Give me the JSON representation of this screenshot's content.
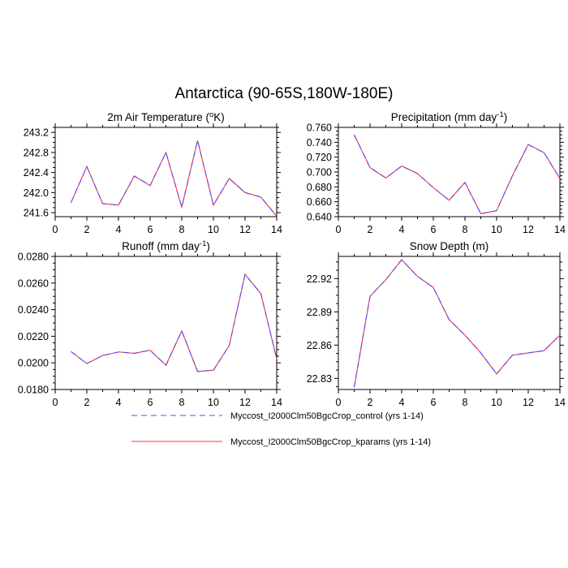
{
  "figure": {
    "title": "Antarctica (90-65S,180W-180E)"
  },
  "legend": [
    {
      "name": "Myccost_I2000Clm50BgcCrop_control (yrs 1-14)",
      "color": "#4d4dff",
      "dash": "dashed"
    },
    {
      "name": "Myccost_I2000Clm50BgcCrop_kparams (yrs 1-14)",
      "color": "#ff3333",
      "dash": "solid"
    }
  ],
  "chart_data": [
    {
      "type": "line",
      "title": "2m Air Temperature (°K)",
      "title_parts": {
        "pre": "2m Air Temperature (",
        "sup": "o",
        "post": "K)"
      },
      "x": [
        1,
        2,
        3,
        4,
        5,
        6,
        7,
        8,
        9,
        10,
        11,
        12,
        13,
        14
      ],
      "xlim": [
        0,
        14
      ],
      "xticks": [
        0,
        2,
        4,
        6,
        8,
        10,
        12,
        14
      ],
      "ylim": [
        241.52,
        243.3
      ],
      "yticks": [
        241.6,
        242.0,
        242.4,
        242.8,
        243.2
      ],
      "ytick_labels": [
        "241.6",
        "242.0",
        "242.4",
        "242.8",
        "243.2"
      ],
      "series": [
        {
          "values": [
            241.8,
            242.52,
            241.78,
            241.75,
            242.33,
            242.14,
            242.8,
            241.71,
            243.04,
            241.75,
            242.28,
            242.0,
            241.91,
            241.53
          ]
        },
        {
          "values": [
            241.8,
            242.52,
            241.78,
            241.75,
            242.33,
            242.14,
            242.8,
            241.71,
            243.04,
            241.75,
            242.28,
            242.0,
            241.91,
            241.53
          ]
        }
      ]
    },
    {
      "type": "line",
      "title": "Precipitation (mm day-1)",
      "title_parts": {
        "pre": "Precipitation (mm day",
        "sup": "-1",
        "post": ")"
      },
      "x": [
        1,
        2,
        3,
        4,
        5,
        6,
        7,
        8,
        9,
        10,
        11,
        12,
        13,
        14
      ],
      "xlim": [
        0,
        14
      ],
      "xticks": [
        0,
        2,
        4,
        6,
        8,
        10,
        12,
        14
      ],
      "ylim": [
        0.64,
        0.76
      ],
      "yticks": [
        0.64,
        0.66,
        0.68,
        0.7,
        0.72,
        0.74,
        0.76
      ],
      "ytick_labels": [
        "0.640",
        "0.660",
        "0.680",
        "0.700",
        "0.720",
        "0.740",
        "0.760"
      ],
      "series": [
        {
          "values": [
            0.75,
            0.706,
            0.692,
            0.708,
            0.698,
            0.679,
            0.662,
            0.686,
            0.644,
            0.648,
            0.695,
            0.737,
            0.726,
            0.691
          ]
        },
        {
          "values": [
            0.75,
            0.706,
            0.692,
            0.708,
            0.698,
            0.679,
            0.662,
            0.686,
            0.644,
            0.648,
            0.695,
            0.737,
            0.726,
            0.691
          ]
        }
      ]
    },
    {
      "type": "line",
      "title": "Runoff (mm day-1)",
      "title_parts": {
        "pre": "Runoff (mm day",
        "sup": "-1",
        "post": ")"
      },
      "x": [
        1,
        2,
        3,
        4,
        5,
        6,
        7,
        8,
        9,
        10,
        11,
        12,
        13,
        14
      ],
      "xlim": [
        0,
        14
      ],
      "xticks": [
        0,
        2,
        4,
        6,
        8,
        10,
        12,
        14
      ],
      "ylim": [
        0.018,
        0.028
      ],
      "yticks": [
        0.018,
        0.02,
        0.022,
        0.024,
        0.026,
        0.028
      ],
      "ytick_labels": [
        "0.0180",
        "0.0200",
        "0.0220",
        "0.0240",
        "0.0260",
        "0.0280"
      ],
      "series": [
        {
          "values": [
            0.02085,
            0.01995,
            0.02055,
            0.02082,
            0.02072,
            0.02095,
            0.01982,
            0.0224,
            0.01935,
            0.01945,
            0.0213,
            0.02665,
            0.0252,
            0.0203
          ]
        },
        {
          "values": [
            0.02085,
            0.01995,
            0.02055,
            0.02082,
            0.02072,
            0.02095,
            0.01982,
            0.0224,
            0.01935,
            0.01945,
            0.0213,
            0.02665,
            0.0252,
            0.0203
          ]
        }
      ]
    },
    {
      "type": "line",
      "title": "Snow Depth (m)",
      "title_parts": {
        "pre": "Snow Depth (m)",
        "sup": "",
        "post": ""
      },
      "x": [
        1,
        2,
        3,
        4,
        5,
        6,
        7,
        8,
        9,
        10,
        11,
        12,
        13,
        14
      ],
      "xlim": [
        0,
        14
      ],
      "xticks": [
        0,
        2,
        4,
        6,
        8,
        10,
        12,
        14
      ],
      "ylim": [
        22.82,
        22.94
      ],
      "yticks": [
        22.83,
        22.86,
        22.89,
        22.92
      ],
      "ytick_labels": [
        "22.83",
        "22.86",
        "22.89",
        "22.92"
      ],
      "series": [
        {
          "values": [
            22.822,
            22.904,
            22.919,
            22.937,
            22.922,
            22.912,
            22.883,
            22.869,
            22.853,
            22.834,
            22.851,
            22.853,
            22.855,
            22.869
          ]
        },
        {
          "values": [
            22.822,
            22.904,
            22.919,
            22.937,
            22.922,
            22.912,
            22.883,
            22.869,
            22.853,
            22.834,
            22.851,
            22.853,
            22.855,
            22.869
          ]
        }
      ]
    }
  ]
}
